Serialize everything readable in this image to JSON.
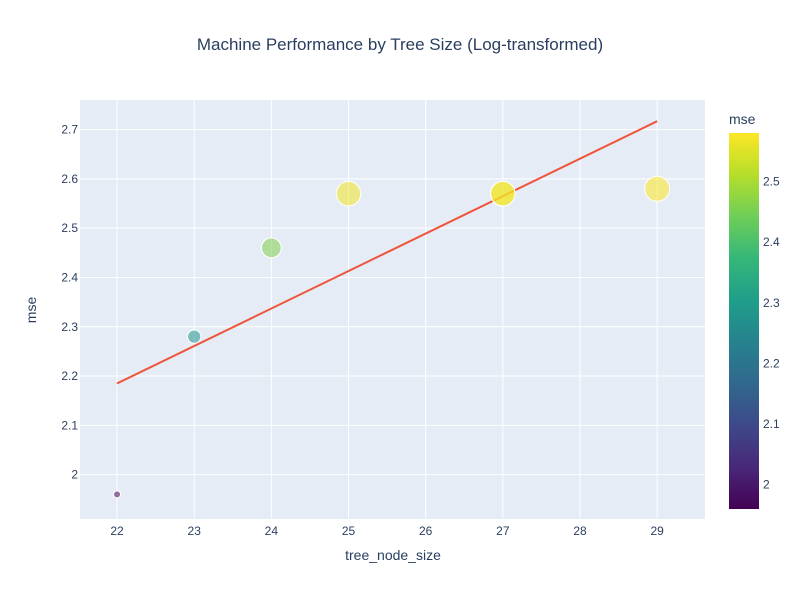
{
  "chart_data": {
    "type": "scatter",
    "title": "Machine Performance by Tree Size (Log-transformed)",
    "xlabel": "tree_node_size",
    "ylabel": "mse",
    "xlim": [
      21.52,
      29.62
    ],
    "ylim": [
      1.91,
      2.76
    ],
    "x_ticks": [
      22,
      23,
      24,
      25,
      26,
      27,
      28,
      29
    ],
    "y_ticks": [
      2,
      2.1,
      2.2,
      2.3,
      2.4,
      2.5,
      2.6,
      2.7
    ],
    "grid": true,
    "points": [
      {
        "x": 22,
        "y": 1.96
      },
      {
        "x": 23,
        "y": 2.28
      },
      {
        "x": 24,
        "y": 2.46
      },
      {
        "x": 25,
        "y": 2.57
      },
      {
        "x": 27,
        "y": 2.57
      },
      {
        "x": 27,
        "y": 2.57
      },
      {
        "x": 29,
        "y": 2.58
      }
    ],
    "trendline": {
      "x": [
        22,
        29
      ],
      "y": [
        2.185,
        2.717
      ]
    },
    "trendline_color": "#ef553b",
    "colorbar": {
      "title": "mse",
      "range": [
        1.96,
        2.58
      ],
      "ticks": [
        2,
        2.1,
        2.2,
        2.3,
        2.4,
        2.5
      ],
      "colorscale": [
        "#440154",
        "#482878",
        "#3e4989",
        "#31688e",
        "#26828e",
        "#1f9e89",
        "#35b779",
        "#6ece58",
        "#b5de2b",
        "#fde725"
      ]
    },
    "plot_background": "#e5ecf6"
  }
}
